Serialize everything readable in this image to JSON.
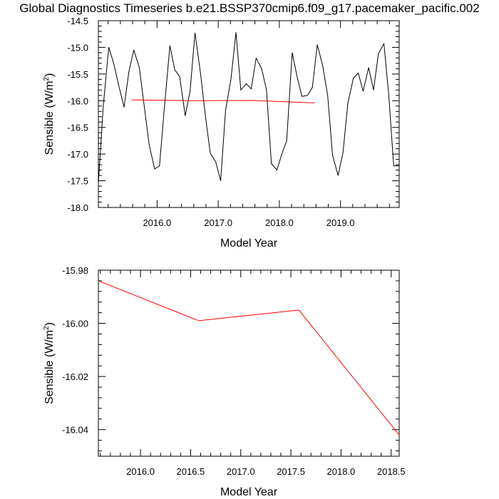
{
  "title": "Global Diagnostics Timeseries b.e21.BSSP370cmip6.f09_g17.pacemaker_pacific.002",
  "chart_data": [
    {
      "type": "line",
      "xlabel": "Model Year",
      "ylabel": "Sensible (W/m",
      "ylabel_sup": "2",
      "ylabel_close": ")",
      "xlim": [
        2015.04,
        2019.96
      ],
      "ylim": [
        -18.0,
        -14.5
      ],
      "xticks": [
        "2016.0",
        "2017.0",
        "2018.0",
        "2019.0"
      ],
      "yticks": [
        "-18.0",
        "-17.5",
        "-17.0",
        "-16.5",
        "-16.0",
        "-15.5",
        "-15.0",
        "-14.5"
      ],
      "series": [
        {
          "color": "#000000",
          "x": [
            2015.04,
            2015.12,
            2015.21,
            2015.29,
            2015.37,
            2015.46,
            2015.54,
            2015.62,
            2015.71,
            2015.79,
            2015.87,
            2015.96,
            2016.04,
            2016.12,
            2016.21,
            2016.29,
            2016.37,
            2016.46,
            2016.54,
            2016.62,
            2016.71,
            2016.79,
            2016.87,
            2016.96,
            2017.04,
            2017.12,
            2017.21,
            2017.29,
            2017.37,
            2017.46,
            2017.54,
            2017.62,
            2017.71,
            2017.79,
            2017.87,
            2017.96,
            2018.04,
            2018.12,
            2018.21,
            2018.29,
            2018.37,
            2018.46,
            2018.54,
            2018.62,
            2018.71,
            2018.79,
            2018.87,
            2018.96,
            2019.04,
            2019.12,
            2019.21,
            2019.29,
            2019.37,
            2019.46,
            2019.54,
            2019.62,
            2019.71,
            2019.79,
            2019.87,
            2019.96
          ],
          "y": [
            -17.55,
            -16.1,
            -15.0,
            -15.3,
            -15.7,
            -16.12,
            -15.45,
            -15.05,
            -15.38,
            -16.1,
            -16.82,
            -17.28,
            -17.22,
            -16.12,
            -14.97,
            -15.42,
            -15.55,
            -16.28,
            -15.82,
            -14.73,
            -15.48,
            -16.28,
            -16.98,
            -17.15,
            -17.5,
            -16.18,
            -15.58,
            -14.72,
            -15.8,
            -15.68,
            -15.78,
            -15.2,
            -15.4,
            -15.8,
            -17.18,
            -17.3,
            -17.0,
            -16.75,
            -15.1,
            -15.55,
            -15.92,
            -15.9,
            -15.75,
            -14.95,
            -15.35,
            -15.9,
            -17.02,
            -17.4,
            -16.98,
            -16.05,
            -15.58,
            -15.48,
            -15.82,
            -15.38,
            -15.8,
            -15.12,
            -14.93,
            -15.9,
            -17.22,
            -17.22
          ]
        },
        {
          "color": "#ff0000",
          "x": [
            2015.58,
            2016.58,
            2017.58,
            2018.58
          ],
          "y": [
            -15.984,
            -15.999,
            -15.995,
            -16.042
          ]
        }
      ]
    },
    {
      "type": "line",
      "xlabel": "Model Year",
      "ylabel": "Sensible (W/m",
      "ylabel_sup": "2",
      "ylabel_close": ")",
      "xlim": [
        2015.58,
        2018.58
      ],
      "ylim": [
        -16.05,
        -15.98
      ],
      "xticks": [
        "2016.0",
        "2016.5",
        "2017.0",
        "2017.5",
        "2018.0",
        "2018.5"
      ],
      "yticks": [
        "-15.98",
        "-16.00",
        "-16.02",
        "-16.04"
      ],
      "series": [
        {
          "color": "#ff0000",
          "x": [
            2015.58,
            2016.58,
            2017.58,
            2018.58
          ],
          "y": [
            -15.984,
            -15.999,
            -15.995,
            -16.042
          ]
        }
      ]
    }
  ]
}
